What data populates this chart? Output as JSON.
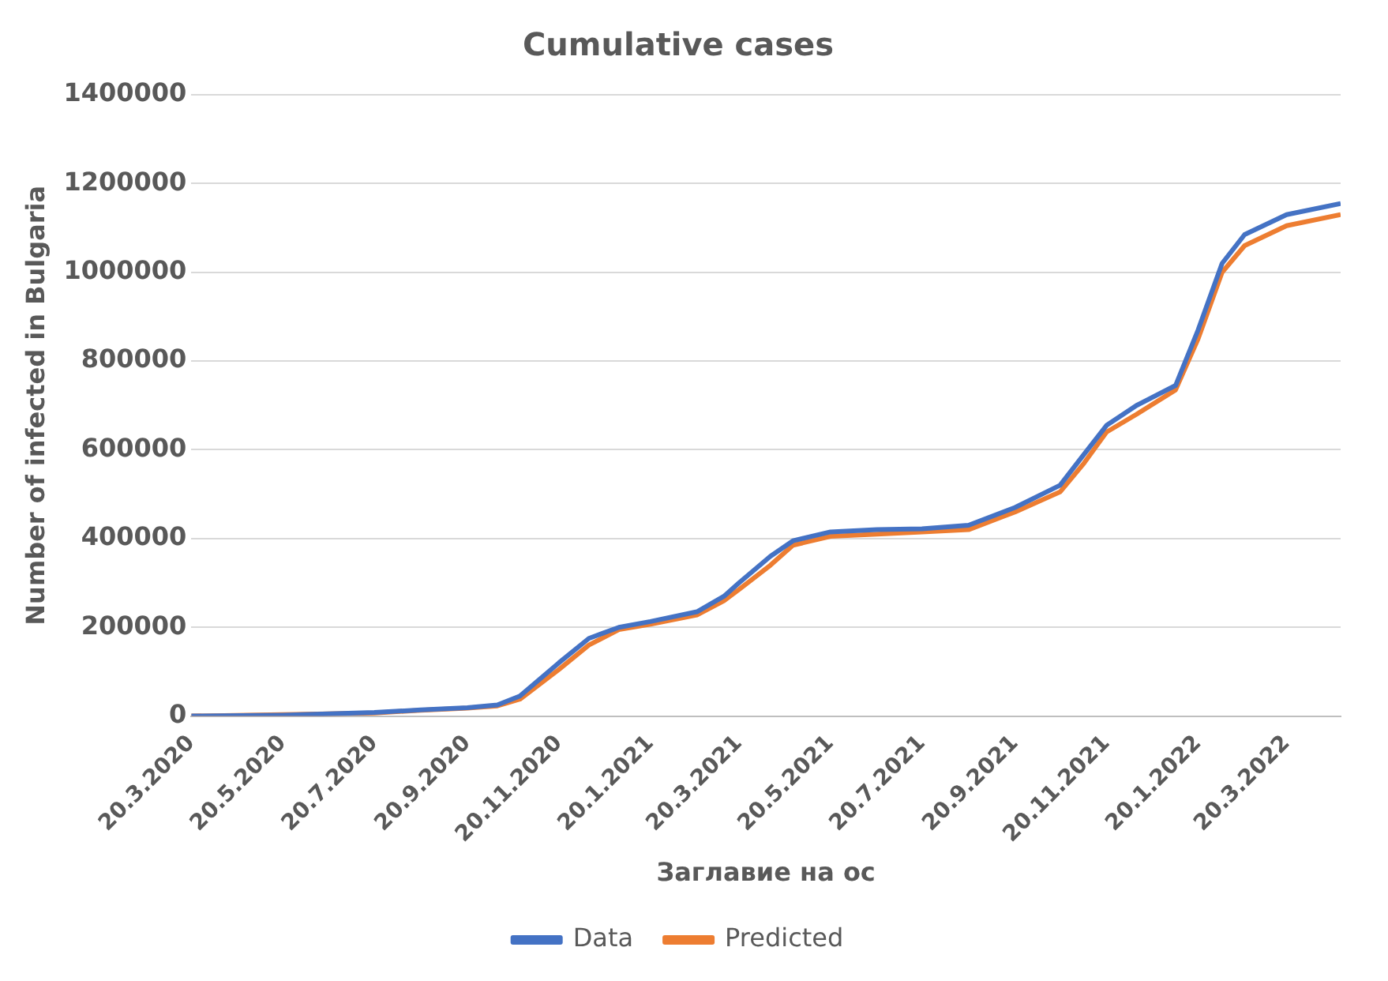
{
  "chart_data": {
    "type": "line",
    "title": "Cumulative cases",
    "xlabel": "Заглавие на ос",
    "ylabel": "Number of infected in Bulgaria",
    "x": [
      "2020-03-20",
      "2020-05-20",
      "2020-07-20",
      "2020-08-20",
      "2020-09-20",
      "2020-10-10",
      "2020-10-25",
      "2020-11-20",
      "2020-12-10",
      "2020-12-30",
      "2021-01-20",
      "2021-02-20",
      "2021-03-10",
      "2021-03-20",
      "2021-04-10",
      "2021-04-25",
      "2021-05-20",
      "2021-06-20",
      "2021-07-20",
      "2021-08-20",
      "2021-09-20",
      "2021-10-20",
      "2021-11-05",
      "2021-11-20",
      "2021-12-10",
      "2022-01-05",
      "2022-01-20",
      "2022-02-05",
      "2022-02-20",
      "2022-03-20",
      "2022-04-25"
    ],
    "series": [
      {
        "name": "Data",
        "color": "#4472c4",
        "values": [
          0,
          2000,
          8000,
          14000,
          19000,
          25000,
          45000,
          120000,
          175000,
          200000,
          213000,
          235000,
          270000,
          300000,
          360000,
          395000,
          415000,
          420000,
          422000,
          430000,
          470000,
          520000,
          590000,
          655000,
          700000,
          745000,
          870000,
          1020000,
          1085000,
          1130000,
          1155000
        ]
      },
      {
        "name": "Predicted",
        "color": "#ed7d31",
        "values": [
          0,
          null,
          7000,
          13000,
          18000,
          23000,
          38000,
          105000,
          160000,
          195000,
          207000,
          228000,
          260000,
          285000,
          340000,
          385000,
          405000,
          410000,
          415000,
          420000,
          460000,
          505000,
          570000,
          640000,
          680000,
          735000,
          850000,
          1000000,
          1060000,
          1105000,
          1130000
        ]
      }
    ],
    "xlim": [
      "2020-03-20",
      "2022-04-25"
    ],
    "xticks": [
      {
        "value": "2020-03-20",
        "label": "20.3.2020"
      },
      {
        "value": "2020-05-20",
        "label": "20.5.2020"
      },
      {
        "value": "2020-07-20",
        "label": "20.7.2020"
      },
      {
        "value": "2020-09-20",
        "label": "20.9.2020"
      },
      {
        "value": "2020-11-20",
        "label": "20.11.2020"
      },
      {
        "value": "2021-01-20",
        "label": "20.1.2021"
      },
      {
        "value": "2021-03-20",
        "label": "20.3.2021"
      },
      {
        "value": "2021-05-20",
        "label": "20.5.2021"
      },
      {
        "value": "2021-07-20",
        "label": "20.7.2021"
      },
      {
        "value": "2021-09-20",
        "label": "20.9.2021"
      },
      {
        "value": "2021-11-20",
        "label": "20.11.2021"
      },
      {
        "value": "2022-01-20",
        "label": "20.1.2022"
      },
      {
        "value": "2022-03-20",
        "label": "20.3.2022"
      }
    ],
    "ylim": [
      0,
      1400000
    ],
    "yticks": [
      0,
      200000,
      400000,
      600000,
      800000,
      1000000,
      1200000,
      1400000
    ],
    "grid": "y",
    "legend": "bottom",
    "marker": "none",
    "line_style": "solid"
  }
}
